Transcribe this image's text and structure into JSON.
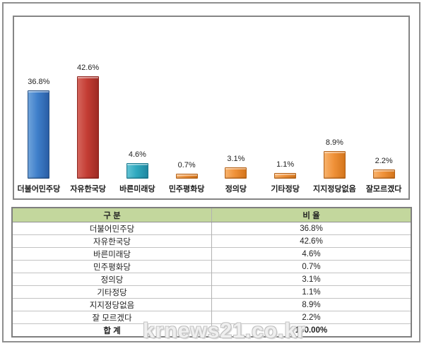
{
  "watermark": "krnews21.co.kr",
  "chart_data": {
    "type": "bar",
    "title": "",
    "xlabel": "",
    "ylabel": "",
    "ylim": [
      0,
      45
    ],
    "grid": false,
    "legend": "none",
    "categories": [
      "더불어민주당",
      "자유한국당",
      "바른미래당",
      "민주평화당",
      "정의당",
      "기타정당",
      "지지정당없음",
      "잘모르겠다"
    ],
    "values": [
      36.8,
      42.6,
      4.6,
      0.7,
      3.1,
      1.1,
      8.9,
      2.2
    ],
    "value_labels": [
      "36.8%",
      "42.6%",
      "4.6%",
      "0.7%",
      "3.1%",
      "1.1%",
      "8.9%",
      "2.2%"
    ],
    "bar_colors": [
      {
        "light": "#6fa3db",
        "base": "#3f7fca",
        "dark": "#2a5ea6",
        "border": "#2a5385"
      },
      {
        "light": "#d5655c",
        "base": "#c43d34",
        "dark": "#9e2b24",
        "border": "#8e2620"
      },
      {
        "light": "#62c3d4",
        "base": "#2fa9bf",
        "dark": "#1f87a0",
        "border": "#1d7a8f"
      },
      {
        "light": "#f8b26b",
        "base": "#f0923a",
        "dark": "#d4751b",
        "border": "#b5631a"
      },
      {
        "light": "#f8b26b",
        "base": "#f0923a",
        "dark": "#d4751b",
        "border": "#b5631a"
      },
      {
        "light": "#f8b26b",
        "base": "#f0923a",
        "dark": "#d4751b",
        "border": "#b5631a"
      },
      {
        "light": "#f8b26b",
        "base": "#f0923a",
        "dark": "#d4751b",
        "border": "#b5631a"
      },
      {
        "light": "#f8b26b",
        "base": "#f0923a",
        "dark": "#d4751b",
        "border": "#b5631a"
      }
    ]
  },
  "table": {
    "headers": [
      "구 분",
      "비 율"
    ],
    "rows": [
      [
        "더불어민주당",
        "36.8%"
      ],
      [
        "자유한국당",
        "42.6%"
      ],
      [
        "바른미래당",
        "4.6%"
      ],
      [
        "민주평화당",
        "0.7%"
      ],
      [
        "정의당",
        "3.1%"
      ],
      [
        "기타정당",
        "1.1%"
      ],
      [
        "지지정당없음",
        "8.9%"
      ],
      [
        "잘 모르겠다",
        "2.2%"
      ],
      [
        "합 계",
        "100.00%"
      ]
    ],
    "total_label": "합 계"
  },
  "colors": {
    "header_bg": "#c3d79d",
    "table_border": "#7f7f7f",
    "row_line": "#c2c2c2",
    "page_border": "#8f8f8f",
    "chart_border": "#858585",
    "watermark_gray": "#c3c3c3"
  }
}
